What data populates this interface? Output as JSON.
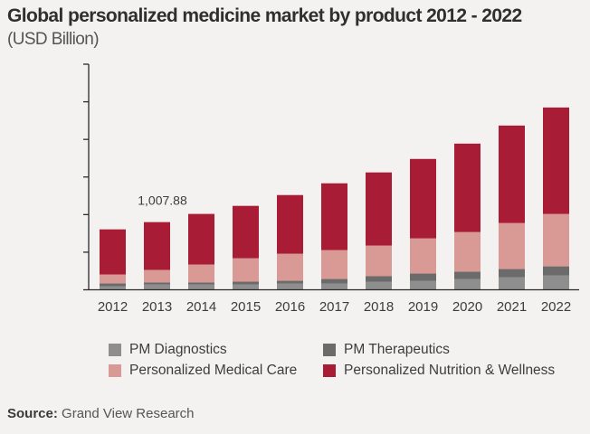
{
  "header": {
    "title": "Global personalized medicine market by product 2012 - 2022",
    "subtitle": "(USD Billion)"
  },
  "chart_data": {
    "type": "bar",
    "stacked": true,
    "title": "Global personalized medicine market by product 2012 - 2022",
    "subtitle": "(USD Billion)",
    "xlabel": "",
    "ylabel": "",
    "categories": [
      "2012",
      "2013",
      "2014",
      "2015",
      "2016",
      "2017",
      "2018",
      "2019",
      "2020",
      "2021",
      "2022"
    ],
    "series": [
      {
        "name": "PM Diagnostics",
        "color": "#8e8e8e",
        "values": [
          54,
          81,
          81,
          81,
          94,
          94,
          121,
          134,
          161,
          188,
          215
        ]
      },
      {
        "name": "PM Therapeutics",
        "color": "#6b6b6b",
        "values": [
          40,
          27,
          27,
          40,
          40,
          67,
          81,
          108,
          108,
          121,
          134
        ]
      },
      {
        "name": "Personalized Medical Care",
        "color": "#d99a96",
        "values": [
          134,
          188,
          269,
          349,
          403,
          430,
          457,
          524,
          591,
          685,
          780
        ]
      },
      {
        "name": "Personalized Nutrition & Wellness",
        "color": "#a81c36",
        "values": [
          672,
          712,
          753,
          780,
          874,
          995,
          1089,
          1183,
          1317,
          1452,
          1586
        ]
      }
    ],
    "annotations": [
      {
        "category": "2013",
        "text": "1,007.88"
      }
    ],
    "ylim": [
      0,
      3360
    ],
    "y_ticks_count": 7,
    "y_tick_labels_shown": false,
    "grid": false,
    "legend": "bottom"
  },
  "legend": {
    "items": [
      {
        "label": "PM Diagnostics",
        "color": "#8e8e8e"
      },
      {
        "label": "PM Therapeutics",
        "color": "#6b6b6b"
      },
      {
        "label": "Personalized Medical Care",
        "color": "#d99a96"
      },
      {
        "label": "Personalized Nutrition & Wellness",
        "color": "#a81c36"
      }
    ]
  },
  "source": {
    "label": "Source:",
    "text": "Grand View Research"
  }
}
